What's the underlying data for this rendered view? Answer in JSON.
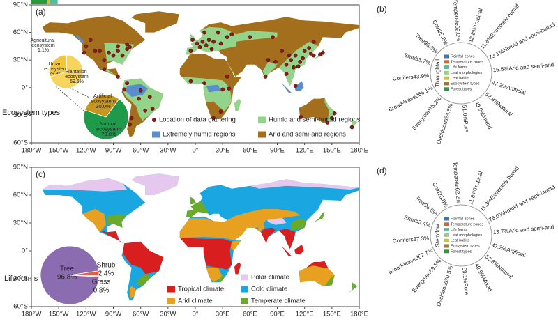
{
  "chart_data": [
    {
      "type": "map",
      "title": "(a)",
      "xlim": [
        -180,
        180
      ],
      "ylim": [
        -60,
        90
      ],
      "xticks": [
        {
          "value": -180,
          "label": "180°W"
        },
        {
          "value": -150,
          "label": "150°W"
        },
        {
          "value": -120,
          "label": "120°W"
        },
        {
          "value": -90,
          "label": "90°W"
        },
        {
          "value": -60,
          "label": "60°W"
        },
        {
          "value": -30,
          "label": "30°W"
        },
        {
          "value": 0,
          "label": "0°"
        },
        {
          "value": 30,
          "label": "30°E"
        },
        {
          "value": 60,
          "label": "60°E"
        },
        {
          "value": 90,
          "label": "90°E"
        },
        {
          "value": 120,
          "label": "120°E"
        },
        {
          "value": 150,
          "label": "150°E"
        },
        {
          "value": 180,
          "label": "180°E"
        }
      ],
      "yticks": [
        {
          "value": 90,
          "label": "90°N"
        },
        {
          "value": 60,
          "label": "60°N"
        },
        {
          "value": 30,
          "label": "30°N"
        },
        {
          "value": 0,
          "label": "0°"
        },
        {
          "value": -30,
          "label": "30°S"
        },
        {
          "value": -60,
          "label": "60°S"
        }
      ],
      "regions": [
        {
          "name": "Extremely humid regions",
          "color": "#5b8ccc"
        },
        {
          "name": "Humid and semi-humid regions",
          "color": "#93d38a"
        },
        {
          "name": "Arid and semi-arid regions",
          "color": "#a36f1c"
        }
      ],
      "series": [
        {
          "name": "Location of data gathering",
          "color": "#8b1a1a",
          "x": [
            -122,
            -120,
            -110,
            -105,
            -95,
            -90,
            -85,
            -80,
            -75,
            -72,
            -85,
            -100,
            -75,
            -115,
            -100,
            -85,
            -60,
            -50,
            -47,
            -55,
            -70,
            -72,
            -62,
            -78,
            -75,
            -3,
            2,
            8,
            12,
            15,
            20,
            25,
            10,
            -5,
            5,
            18,
            28,
            35,
            40,
            -5,
            10,
            30,
            37,
            28,
            20,
            35,
            100,
            105,
            110,
            115,
            118,
            120,
            125,
            113,
            108,
            103,
            95,
            88,
            80,
            77,
            130,
            137,
            140,
            127,
            100,
            110,
            85,
            60,
            130,
            150,
            145,
            116,
            153,
            172
          ],
          "y": [
            38,
            45,
            40,
            40,
            38,
            35,
            40,
            35,
            42,
            44,
            45,
            30,
            47,
            52,
            20,
            12,
            -3,
            -10,
            -23,
            -25,
            -33,
            -40,
            -12,
            -2,
            5,
            52,
            48,
            50,
            46,
            52,
            50,
            60,
            60,
            40,
            44,
            42,
            48,
            55,
            58,
            7,
            5,
            -2,
            -1,
            -26,
            -33,
            12,
            25,
            30,
            35,
            28,
            32,
            40,
            43,
            23,
            22,
            35,
            40,
            28,
            30,
            12,
            35,
            36,
            38,
            37,
            15,
            2,
            55,
            55,
            50,
            -33,
            -38,
            -32,
            -28,
            -43
          ]
        }
      ]
    },
    {
      "type": "pie",
      "title": "Ecosystem types",
      "categories": [
        "Artificial ecosystem",
        "Natural ecosystem"
      ],
      "values": [
        30.0,
        70.0
      ],
      "value_labels": [
        "30.0%",
        "70.0%"
      ],
      "colors": [
        "#c8961e",
        "#1e9a4a"
      ]
    },
    {
      "type": "pie",
      "categories": [
        "Agricultural ecosystem",
        "Urban ecosystem",
        "Plantation ecosystem"
      ],
      "values": [
        1.1,
        29.3,
        69.6
      ],
      "value_labels": [
        "1.1%",
        "29.3%",
        "69.6%"
      ],
      "colors": [
        "#f8e070",
        "#f2c63a",
        "#f7d45c"
      ]
    },
    {
      "type": "radial_bar",
      "title": "(b)",
      "label": "Throughfall",
      "series": [
        {
          "name": "Rainfall zones",
          "color": "#3a78b8",
          "categories": [
            "Extremely humid",
            "Humid and semi-humid",
            "Arid and semi-arid"
          ],
          "values": [
            11.4,
            73.1,
            15.5
          ],
          "value_labels": [
            "11.4%",
            "73.1%",
            "15.5%"
          ]
        },
        {
          "name": "Temperature zones",
          "color": "#e0632a",
          "categories": [
            "Cold",
            "Temperate",
            "Tropical"
          ],
          "values": [
            25.2,
            62.0,
            12.8
          ],
          "value_labels": [
            "25.2%",
            "62.0%",
            "12.8%"
          ]
        },
        {
          "name": "Life forms",
          "color": "#4fbf9a",
          "categories": [
            "Tree",
            "Shrub"
          ],
          "values": [
            96.3,
            3.7
          ],
          "value_labels": [
            "96.3%",
            "3.7%"
          ]
        },
        {
          "name": "Leaf morphologies",
          "color": "#9ccb8a",
          "categories": [
            "Conifers",
            "Broad-leaved"
          ],
          "values": [
            43.9,
            56.1
          ],
          "value_labels": [
            "43.9%",
            "56.1%"
          ]
        },
        {
          "name": "Leaf habits",
          "color": "#c4c43a",
          "categories": [
            "Evergreen",
            "Deciduous"
          ],
          "values": [
            75.2,
            24.8
          ],
          "value_labels": [
            "75.2%",
            "24.8%"
          ]
        },
        {
          "name": "Ecosystem types",
          "color": "#9c7a2a",
          "categories": [
            "Artificial",
            "Natural"
          ],
          "values": [
            47.2,
            52.8
          ],
          "value_labels": [
            "47.2%",
            "52.8%"
          ]
        },
        {
          "name": "Forest types",
          "color": "#2a9a3a",
          "categories": [
            "Mixed",
            "Pure"
          ],
          "values": [
            49.0,
            51.0
          ],
          "value_labels": [
            "49.0%",
            "51.0%"
          ]
        }
      ]
    },
    {
      "type": "map",
      "title": "(c)",
      "xlim": [
        -180,
        180
      ],
      "ylim": [
        -60,
        90
      ],
      "xticks": [
        {
          "value": -180,
          "label": "180°W"
        },
        {
          "value": -150,
          "label": "150°W"
        },
        {
          "value": -120,
          "label": "120°W"
        },
        {
          "value": -90,
          "label": "90°W"
        },
        {
          "value": -60,
          "label": "60°W"
        },
        {
          "value": -30,
          "label": "30°W"
        },
        {
          "value": 0,
          "label": "0°"
        },
        {
          "value": 30,
          "label": "30°E"
        },
        {
          "value": 60,
          "label": "60°E"
        },
        {
          "value": 90,
          "label": "90°E"
        },
        {
          "value": 120,
          "label": "120°E"
        },
        {
          "value": 150,
          "label": "150°E"
        },
        {
          "value": 180,
          "label": "180°E"
        }
      ],
      "yticks": [
        {
          "value": 90,
          "label": "90°N"
        },
        {
          "value": 60,
          "label": "60°N"
        },
        {
          "value": 30,
          "label": "30°N"
        },
        {
          "value": 0,
          "label": "0°"
        },
        {
          "value": -30,
          "label": "30°S"
        },
        {
          "value": -60,
          "label": "60°S"
        }
      ],
      "regions": [
        {
          "name": "Polar climate",
          "color": "#e6c8ee"
        },
        {
          "name": "Tropical climate",
          "color": "#d81e1e"
        },
        {
          "name": "Cold climate",
          "color": "#1aa6e0"
        },
        {
          "name": "Arid climate",
          "color": "#e8a020"
        },
        {
          "name": "Temperate climate",
          "color": "#6aaa28"
        }
      ]
    },
    {
      "type": "pie",
      "title": "Life forms",
      "categories": [
        "Tree",
        "Shrub",
        "Grass"
      ],
      "values": [
        96.8,
        2.4,
        0.8
      ],
      "value_labels": [
        "96.8%",
        "2.4%",
        "0.8%"
      ],
      "colors": [
        "#8b6cb0",
        "#e0604a",
        "#f2c0c0"
      ]
    },
    {
      "type": "radial_bar",
      "title": "(d)",
      "label": "Stemflow",
      "series": [
        {
          "name": "Rainfall zones",
          "color": "#3a78b8",
          "categories": [
            "Extremely humid",
            "Humid and semi-humid",
            "Arid and semi-arid"
          ],
          "values": [
            11.3,
            75.0,
            13.7
          ],
          "value_labels": [
            "11.3%",
            "75.0%",
            "13.7%"
          ]
        },
        {
          "name": "Temperature zones",
          "color": "#e0632a",
          "categories": [
            "Cold",
            "Temperate",
            "Tropical"
          ],
          "values": [
            26.0,
            62.2,
            11.8
          ],
          "value_labels": [
            "26.0%",
            "62.2%",
            "11.8%"
          ]
        },
        {
          "name": "Life forms",
          "color": "#4fbf9a",
          "categories": [
            "Tree",
            "Shrub"
          ],
          "values": [
            96.6,
            3.4
          ],
          "value_labels": [
            "96.6%",
            "3.4%"
          ]
        },
        {
          "name": "Leaf morphologies",
          "color": "#9ccb8a",
          "categories": [
            "Conifers",
            "Broad-leaved"
          ],
          "values": [
            37.3,
            62.7
          ],
          "value_labels": [
            "37.3%",
            "62.7%"
          ]
        },
        {
          "name": "Leaf habits",
          "color": "#c4c43a",
          "categories": [
            "Evergreen",
            "Deciduous"
          ],
          "values": [
            69.5,
            30.5
          ],
          "value_labels": [
            "69.5%",
            "30.5%"
          ]
        },
        {
          "name": "Ecosystem types",
          "color": "#9c7a2a",
          "categories": [
            "Artificial",
            "Natural"
          ],
          "values": [
            47.2,
            52.8
          ],
          "value_labels": [
            "47.2%",
            "52.8%"
          ]
        },
        {
          "name": "Forest types",
          "color": "#2a9a3a",
          "categories": [
            "Mixed",
            "Pure"
          ],
          "values": [
            40.9,
            59.1
          ],
          "value_labels": [
            "40.9%",
            "59.1%"
          ]
        }
      ]
    }
  ]
}
